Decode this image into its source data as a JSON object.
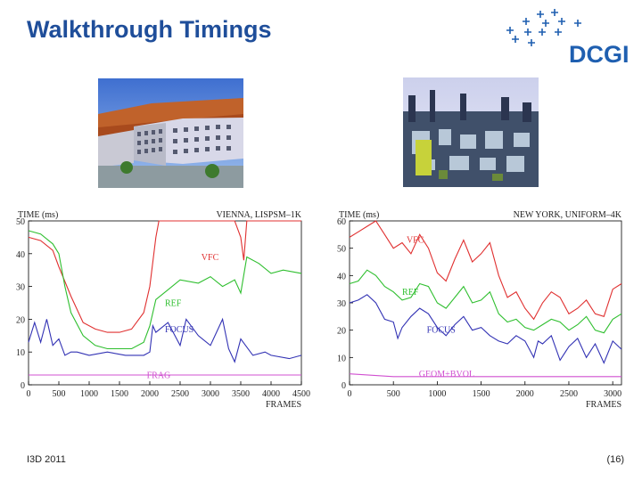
{
  "slide": {
    "title": "Walkthrough Timings",
    "footer_left": "I3D 2011",
    "footer_right": "(16)"
  },
  "logo": {
    "text": "DCGI",
    "color": "#1f5fb0"
  },
  "images": [
    {
      "name": "vienna-scene-thumbnail"
    },
    {
      "name": "new-york-scene-thumbnail"
    }
  ],
  "chart_data": [
    {
      "type": "line",
      "title": "VIENNA, LISPSM–1K",
      "ylabel": "TIME (ms)",
      "xlabel": "FRAMES",
      "ylim": [
        0,
        50
      ],
      "xlim": [
        0,
        4500
      ],
      "yticks": [
        0,
        10,
        20,
        30,
        40,
        50
      ],
      "xticks": [
        0,
        500,
        1000,
        1500,
        2000,
        2500,
        3000,
        3500,
        4000,
        4500
      ],
      "grid": false,
      "series": [
        {
          "name": "VFC",
          "color": "#e03030",
          "x": [
            0,
            200,
            400,
            500,
            700,
            900,
            1100,
            1300,
            1500,
            1700,
            1900,
            2000,
            2100,
            2150,
            2200,
            3400,
            3500,
            3550,
            3600,
            3800,
            4000,
            4200,
            4500
          ],
          "y": [
            45,
            44,
            41,
            36,
            27,
            19,
            17,
            16,
            16,
            17,
            22,
            30,
            45,
            52,
            52,
            52,
            45,
            38,
            52,
            52,
            52,
            52,
            52
          ]
        },
        {
          "name": "REF",
          "color": "#2fbf2f",
          "x": [
            0,
            200,
            400,
            500,
            600,
            700,
            900,
            1100,
            1300,
            1500,
            1700,
            1900,
            2000,
            2100,
            2300,
            2500,
            2800,
            3000,
            3200,
            3400,
            3500,
            3600,
            3800,
            4000,
            4200,
            4500
          ],
          "y": [
            47,
            46,
            43,
            40,
            30,
            22,
            15,
            12,
            11,
            11,
            11,
            13,
            18,
            26,
            29,
            32,
            31,
            33,
            30,
            32,
            28,
            39,
            37,
            34,
            35,
            34
          ]
        },
        {
          "name": "FOCUS",
          "color": "#3232b4",
          "x": [
            0,
            100,
            200,
            300,
            400,
            500,
            600,
            700,
            800,
            1000,
            1300,
            1600,
            1900,
            2000,
            2050,
            2100,
            2300,
            2500,
            2600,
            2800,
            3000,
            3200,
            3300,
            3400,
            3500,
            3700,
            3900,
            4000,
            4300,
            4500
          ],
          "y": [
            13,
            19,
            13,
            20,
            12,
            14,
            9,
            10,
            10,
            9,
            10,
            9,
            9,
            10,
            18,
            16,
            19,
            12,
            20,
            15,
            12,
            20,
            11,
            7,
            14,
            9,
            10,
            9,
            8,
            9
          ]
        },
        {
          "name": "FRAG",
          "color": "#d050d0",
          "x": [
            0,
            500,
            1000,
            1500,
            2000,
            2500,
            3000,
            3500,
            4000,
            4500
          ],
          "y": [
            3,
            3,
            3,
            3,
            3,
            3,
            3,
            3,
            3,
            3
          ]
        }
      ]
    },
    {
      "type": "line",
      "title": "NEW YORK, UNIFORM–4K",
      "ylabel": "TIME (ms)",
      "xlabel": "FRAMES",
      "ylim": [
        0,
        60
      ],
      "xlim": [
        0,
        3100
      ],
      "yticks": [
        0,
        10,
        20,
        30,
        40,
        50,
        60
      ],
      "xticks": [
        0,
        500,
        1000,
        1500,
        2000,
        2500,
        3000
      ],
      "grid": false,
      "series": [
        {
          "name": "VFC",
          "color": "#e03030",
          "x": [
            0,
            100,
            200,
            300,
            400,
            500,
            600,
            700,
            800,
            900,
            1000,
            1100,
            1200,
            1300,
            1400,
            1500,
            1600,
            1700,
            1800,
            1900,
            2000,
            2100,
            2200,
            2300,
            2400,
            2500,
            2600,
            2700,
            2800,
            2900,
            3000,
            3100
          ],
          "y": [
            54,
            56,
            58,
            60,
            55,
            50,
            52,
            48,
            55,
            50,
            41,
            38,
            46,
            53,
            45,
            48,
            52,
            40,
            32,
            34,
            28,
            24,
            30,
            34,
            32,
            26,
            28,
            31,
            26,
            25,
            35,
            37
          ]
        },
        {
          "name": "REF",
          "color": "#2fbf2f",
          "x": [
            0,
            100,
            200,
            300,
            400,
            500,
            600,
            700,
            800,
            900,
            1000,
            1100,
            1200,
            1300,
            1400,
            1500,
            1600,
            1700,
            1800,
            1900,
            2000,
            2100,
            2200,
            2300,
            2400,
            2500,
            2600,
            2700,
            2800,
            2900,
            3000,
            3100
          ],
          "y": [
            37,
            38,
            42,
            40,
            36,
            34,
            31,
            32,
            37,
            36,
            30,
            28,
            32,
            36,
            30,
            31,
            34,
            26,
            23,
            24,
            21,
            20,
            22,
            24,
            23,
            20,
            22,
            25,
            20,
            19,
            24,
            26
          ]
        },
        {
          "name": "FOCUS",
          "color": "#3232b4",
          "x": [
            0,
            100,
            200,
            300,
            400,
            500,
            550,
            600,
            700,
            800,
            900,
            1000,
            1100,
            1200,
            1300,
            1400,
            1500,
            1600,
            1700,
            1800,
            1900,
            2000,
            2100,
            2150,
            2200,
            2300,
            2400,
            2500,
            2600,
            2700,
            2800,
            2900,
            3000,
            3100
          ],
          "y": [
            30,
            31,
            33,
            30,
            24,
            23,
            17,
            21,
            25,
            28,
            26,
            21,
            18,
            22,
            25,
            20,
            21,
            18,
            16,
            15,
            18,
            16,
            10,
            16,
            15,
            18,
            9,
            14,
            17,
            10,
            15,
            8,
            16,
            13
          ]
        },
        {
          "name": "GEOM+BVOL",
          "color": "#d050d0",
          "x": [
            0,
            500,
            1000,
            1500,
            2000,
            2500,
            3000,
            3100
          ],
          "y": [
            4,
            3,
            3,
            3,
            3,
            3,
            3,
            3
          ]
        }
      ]
    }
  ]
}
